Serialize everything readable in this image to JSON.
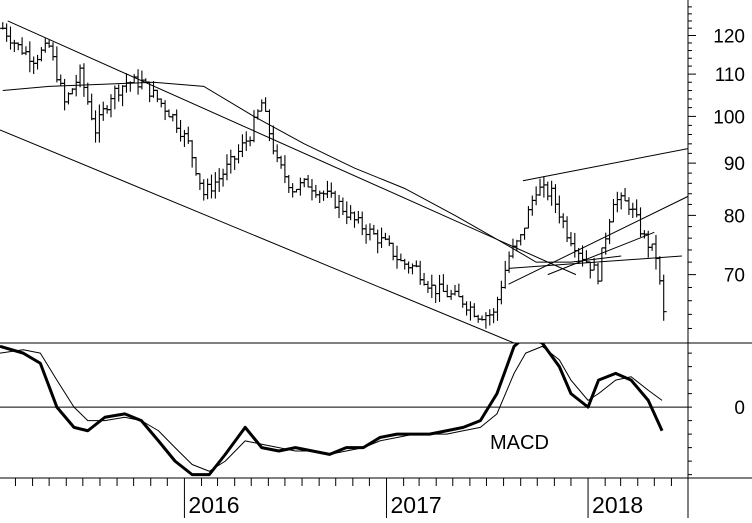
{
  "chart_data": [
    {
      "type": "ohlc",
      "title": "",
      "xlabel": "",
      "ylabel": "",
      "scale": "log",
      "ylim": [
        60,
        130
      ],
      "xlim": [
        "2015-02-01",
        "2018-07-01"
      ],
      "y_ticks": [
        70,
        80,
        90,
        100,
        110,
        120
      ],
      "x_ticks": [
        {
          "label": "2016",
          "date": "2016-01-01"
        },
        {
          "label": "2017",
          "date": "2017-01-01"
        },
        {
          "label": "2018",
          "date": "2018-01-01"
        }
      ],
      "grid": false,
      "legend": "none",
      "price_points": [
        [
          "2015-02-06",
          122
        ],
        [
          "2015-03-06",
          117
        ],
        [
          "2015-04-03",
          114
        ],
        [
          "2015-05-01",
          117
        ],
        [
          "2015-05-29",
          103
        ],
        [
          "2015-06-26",
          110
        ],
        [
          "2015-07-24",
          97
        ],
        [
          "2015-08-21",
          105
        ],
        [
          "2015-09-18",
          108
        ],
        [
          "2015-10-16",
          108
        ],
        [
          "2015-11-13",
          104
        ],
        [
          "2015-12-11",
          100
        ],
        [
          "2016-01-08",
          94
        ],
        [
          "2016-02-05",
          84
        ],
        [
          "2016-03-04",
          87
        ],
        [
          "2016-04-01",
          91
        ],
        [
          "2016-04-29",
          96
        ],
        [
          "2016-05-20",
          103
        ],
        [
          "2016-06-17",
          90
        ],
        [
          "2016-07-15",
          85
        ],
        [
          "2016-08-12",
          86
        ],
        [
          "2016-09-09",
          84
        ],
        [
          "2016-10-07",
          82
        ],
        [
          "2016-11-04",
          79
        ],
        [
          "2016-12-02",
          77
        ],
        [
          "2016-12-30",
          75
        ],
        [
          "2017-01-27",
          72
        ],
        [
          "2017-02-24",
          71
        ],
        [
          "2017-03-24",
          68
        ],
        [
          "2017-04-21",
          67
        ],
        [
          "2017-05-19",
          66
        ],
        [
          "2017-06-16",
          64
        ],
        [
          "2017-07-14",
          64
        ],
        [
          "2017-08-11",
          73
        ],
        [
          "2017-09-01",
          76
        ],
        [
          "2017-09-29",
          85
        ],
        [
          "2017-10-27",
          84
        ],
        [
          "2017-11-24",
          77
        ],
        [
          "2017-12-22",
          73
        ],
        [
          "2018-01-19",
          70
        ],
        [
          "2018-02-16",
          83
        ],
        [
          "2018-03-16",
          82
        ],
        [
          "2018-04-13",
          76
        ],
        [
          "2018-05-04",
          73
        ],
        [
          "2018-05-18",
          64
        ]
      ],
      "series": [
        {
          "values": [
            [
              "2015-02-06",
              106
            ],
            [
              "2015-05-01",
              107
            ],
            [
              "2015-08-07",
              107.5
            ],
            [
              "2015-11-06",
              108
            ],
            [
              "2016-02-05",
              107
            ],
            [
              "2016-05-06",
              100
            ],
            [
              "2016-08-05",
              94
            ],
            [
              "2016-11-04",
              89
            ],
            [
              "2017-02-03",
              85
            ],
            [
              "2017-05-05",
              80
            ],
            [
              "2017-08-04",
              75
            ],
            [
              "2017-09-29",
              72
            ],
            [
              "2017-12-01",
              72
            ],
            [
              "2018-03-02",
              73
            ]
          ]
        }
      ],
      "annotations": [
        {
          "type": "trendline",
          "from": [
            "2015-02-15",
            124
          ],
          "to": [
            "2017-12-10",
            70
          ]
        },
        {
          "type": "trendline",
          "from": [
            "2015-02-01",
            97
          ],
          "to": [
            "2017-08-20",
            60
          ]
        },
        {
          "type": "trendline",
          "from": [
            "2017-09-05",
            86.5
          ],
          "to": [
            "2018-07-01",
            93
          ]
        },
        {
          "type": "trendline",
          "from": [
            "2017-08-10",
            68.5
          ],
          "to": [
            "2018-07-01",
            83.5
          ]
        },
        {
          "type": "trendline",
          "from": [
            "2017-08-10",
            71
          ],
          "to": [
            "2018-06-20",
            73
          ]
        },
        {
          "type": "trendline",
          "from": [
            "2017-10-20",
            70
          ],
          "to": [
            "2018-05-01",
            77
          ]
        }
      ]
    },
    {
      "type": "line",
      "title": "MACD",
      "xlabel": "",
      "ylabel": "",
      "ylim": [
        -10.5,
        9.5
      ],
      "y_ticks": [
        0
      ],
      "grid": false,
      "legend": "none",
      "series": [
        {
          "style": "thick",
          "values": [
            [
              "2015-02-01",
              9
            ],
            [
              "2015-03-15",
              8
            ],
            [
              "2015-04-15",
              6.5
            ],
            [
              "2015-05-15",
              0
            ],
            [
              "2015-06-15",
              -3
            ],
            [
              "2015-07-10",
              -3.5
            ],
            [
              "2015-08-10",
              -1.5
            ],
            [
              "2015-09-15",
              -1
            ],
            [
              "2015-10-15",
              -2
            ],
            [
              "2015-11-15",
              -5
            ],
            [
              "2015-12-15",
              -8
            ],
            [
              "2016-01-15",
              -10
            ],
            [
              "2016-02-15",
              -10
            ],
            [
              "2016-03-15",
              -7
            ],
            [
              "2016-04-20",
              -3
            ],
            [
              "2016-05-20",
              -6
            ],
            [
              "2016-06-20",
              -6.5
            ],
            [
              "2016-07-20",
              -6
            ],
            [
              "2016-08-20",
              -6.5
            ],
            [
              "2016-09-20",
              -7
            ],
            [
              "2016-10-20",
              -6
            ],
            [
              "2016-11-20",
              -6
            ],
            [
              "2016-12-20",
              -4.5
            ],
            [
              "2017-01-20",
              -4
            ],
            [
              "2017-02-20",
              -4
            ],
            [
              "2017-03-20",
              -4
            ],
            [
              "2017-04-20",
              -3.5
            ],
            [
              "2017-05-20",
              -3
            ],
            [
              "2017-06-20",
              -2
            ],
            [
              "2017-07-20",
              2
            ],
            [
              "2017-08-20",
              9
            ],
            [
              "2017-09-10",
              10.5
            ],
            [
              "2017-10-10",
              9.5
            ],
            [
              "2017-11-10",
              6
            ],
            [
              "2017-12-01",
              2
            ],
            [
              "2018-01-01",
              0
            ],
            [
              "2018-01-20",
              4
            ],
            [
              "2018-02-20",
              5
            ],
            [
              "2018-03-20",
              4
            ],
            [
              "2018-04-20",
              1
            ],
            [
              "2018-05-15",
              -3.5
            ]
          ]
        },
        {
          "style": "thin",
          "values": [
            [
              "2015-02-01",
              8
            ],
            [
              "2015-03-15",
              8.5
            ],
            [
              "2015-04-15",
              8
            ],
            [
              "2015-05-15",
              4
            ],
            [
              "2015-06-15",
              0
            ],
            [
              "2015-07-10",
              -2
            ],
            [
              "2015-08-10",
              -2
            ],
            [
              "2015-09-15",
              -1.5
            ],
            [
              "2015-10-15",
              -2
            ],
            [
              "2015-11-15",
              -3.5
            ],
            [
              "2015-12-15",
              -6
            ],
            [
              "2016-01-15",
              -8.5
            ],
            [
              "2016-02-15",
              -9.5
            ],
            [
              "2016-03-15",
              -8
            ],
            [
              "2016-04-20",
              -5
            ],
            [
              "2016-05-20",
              -5.5
            ],
            [
              "2016-06-20",
              -6
            ],
            [
              "2016-07-20",
              -6.5
            ],
            [
              "2016-08-20",
              -6.5
            ],
            [
              "2016-09-20",
              -7
            ],
            [
              "2016-10-20",
              -6.5
            ],
            [
              "2016-11-20",
              -6
            ],
            [
              "2016-12-20",
              -5
            ],
            [
              "2017-01-20",
              -4.5
            ],
            [
              "2017-02-20",
              -4
            ],
            [
              "2017-03-20",
              -4
            ],
            [
              "2017-04-20",
              -4
            ],
            [
              "2017-05-20",
              -3.5
            ],
            [
              "2017-06-20",
              -3
            ],
            [
              "2017-07-20",
              -1
            ],
            [
              "2017-08-20",
              5
            ],
            [
              "2017-09-10",
              8
            ],
            [
              "2017-10-10",
              9
            ],
            [
              "2017-11-10",
              7
            ],
            [
              "2017-12-01",
              4
            ],
            [
              "2018-01-01",
              1
            ],
            [
              "2018-01-20",
              2
            ],
            [
              "2018-02-20",
              4
            ],
            [
              "2018-03-20",
              4.5
            ],
            [
              "2018-04-20",
              2.5
            ],
            [
              "2018-05-15",
              1
            ]
          ]
        }
      ]
    }
  ]
}
